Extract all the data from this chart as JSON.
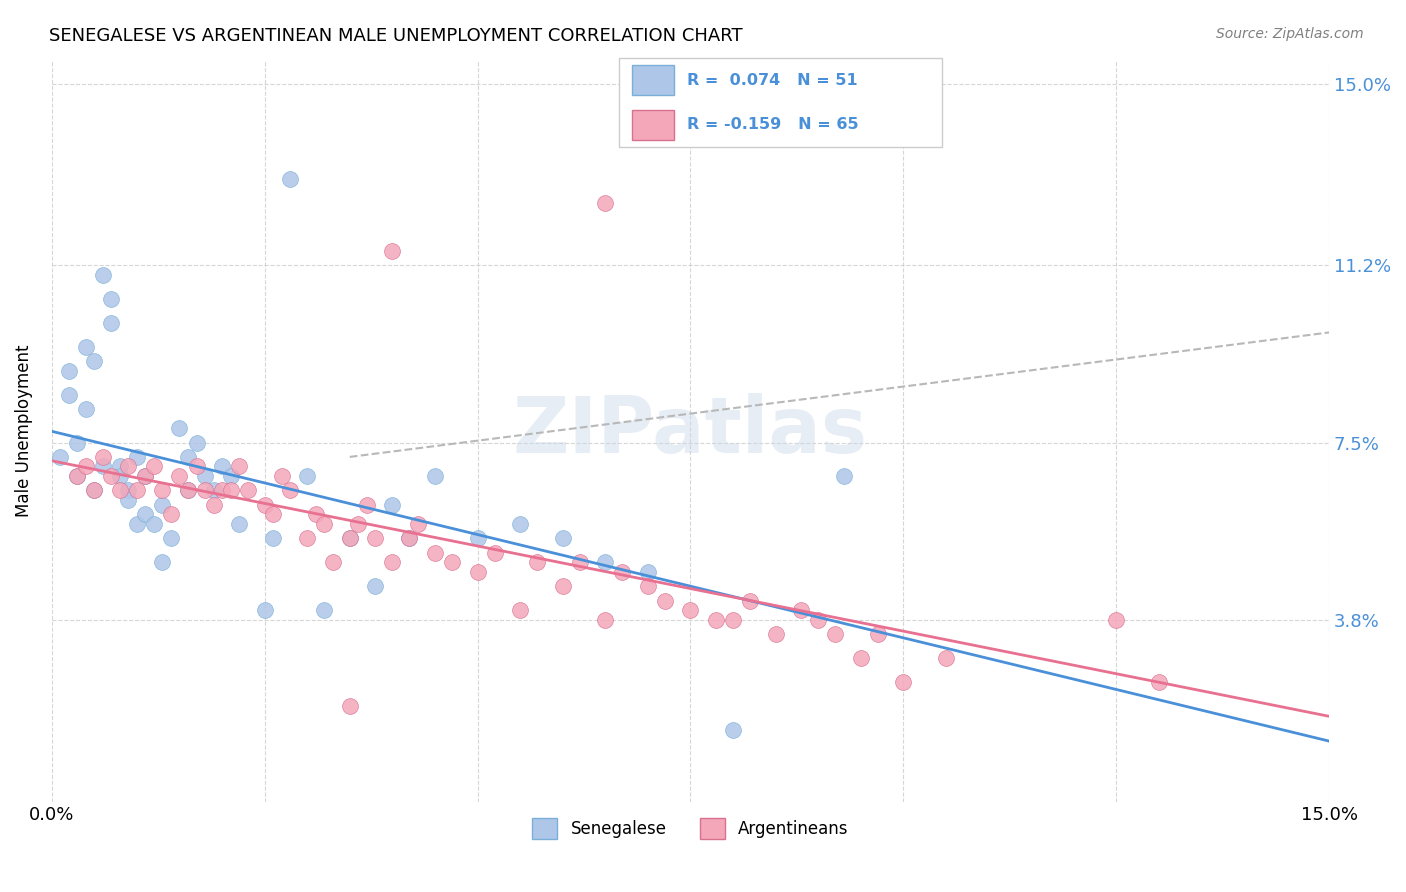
{
  "title": "SENEGALESE VS ARGENTINEAN MALE UNEMPLOYMENT CORRELATION CHART",
  "source": "Source: ZipAtlas.com",
  "ylabel": "Male Unemployment",
  "xlim": [
    0.0,
    0.15
  ],
  "ylim": [
    0.0,
    0.155
  ],
  "yticks": [
    0.038,
    0.075,
    0.112,
    0.15
  ],
  "ytick_labels": [
    "3.8%",
    "7.5%",
    "11.2%",
    "15.0%"
  ],
  "xticks": [
    0.0,
    0.025,
    0.05,
    0.075,
    0.1,
    0.125,
    0.15
  ],
  "xtick_labels": [
    "0.0%",
    "",
    "",
    "",
    "",
    "",
    "15.0%"
  ],
  "senegalese_color": "#aec6e8",
  "senegalese_edge": "#7ab0d8",
  "argentinean_color": "#f4a7b9",
  "argentinean_edge": "#d87090",
  "trend_blue": "#4a90d9",
  "trend_pink": "#e87090",
  "trend_dashed_color": "#b8b8b8",
  "senegalese_x": [
    0.001,
    0.002,
    0.002,
    0.003,
    0.003,
    0.004,
    0.004,
    0.005,
    0.005,
    0.006,
    0.006,
    0.007,
    0.007,
    0.008,
    0.008,
    0.009,
    0.009,
    0.01,
    0.01,
    0.011,
    0.011,
    0.012,
    0.013,
    0.013,
    0.014,
    0.015,
    0.016,
    0.016,
    0.017,
    0.018,
    0.019,
    0.02,
    0.021,
    0.022,
    0.025,
    0.026,
    0.028,
    0.03,
    0.032,
    0.035,
    0.038,
    0.04,
    0.042,
    0.045,
    0.05,
    0.055,
    0.06,
    0.065,
    0.07,
    0.08,
    0.093
  ],
  "senegalese_y": [
    0.072,
    0.09,
    0.085,
    0.068,
    0.075,
    0.082,
    0.095,
    0.092,
    0.065,
    0.07,
    0.11,
    0.105,
    0.1,
    0.07,
    0.068,
    0.065,
    0.063,
    0.058,
    0.072,
    0.068,
    0.06,
    0.058,
    0.062,
    0.05,
    0.055,
    0.078,
    0.065,
    0.072,
    0.075,
    0.068,
    0.065,
    0.07,
    0.068,
    0.058,
    0.04,
    0.055,
    0.13,
    0.068,
    0.04,
    0.055,
    0.045,
    0.062,
    0.055,
    0.068,
    0.055,
    0.058,
    0.055,
    0.05,
    0.048,
    0.015,
    0.068
  ],
  "argentinean_x": [
    0.003,
    0.004,
    0.005,
    0.006,
    0.007,
    0.008,
    0.009,
    0.01,
    0.011,
    0.012,
    0.013,
    0.014,
    0.015,
    0.016,
    0.017,
    0.018,
    0.019,
    0.02,
    0.021,
    0.022,
    0.023,
    0.025,
    0.026,
    0.027,
    0.028,
    0.03,
    0.031,
    0.032,
    0.033,
    0.035,
    0.036,
    0.037,
    0.038,
    0.04,
    0.042,
    0.043,
    0.045,
    0.047,
    0.05,
    0.052,
    0.055,
    0.057,
    0.06,
    0.062,
    0.065,
    0.067,
    0.07,
    0.072,
    0.075,
    0.078,
    0.08,
    0.082,
    0.085,
    0.088,
    0.09,
    0.092,
    0.095,
    0.097,
    0.1,
    0.105,
    0.065,
    0.04,
    0.035,
    0.125,
    0.13
  ],
  "argentinean_y": [
    0.068,
    0.07,
    0.065,
    0.072,
    0.068,
    0.065,
    0.07,
    0.065,
    0.068,
    0.07,
    0.065,
    0.06,
    0.068,
    0.065,
    0.07,
    0.065,
    0.062,
    0.065,
    0.065,
    0.07,
    0.065,
    0.062,
    0.06,
    0.068,
    0.065,
    0.055,
    0.06,
    0.058,
    0.05,
    0.055,
    0.058,
    0.062,
    0.055,
    0.05,
    0.055,
    0.058,
    0.052,
    0.05,
    0.048,
    0.052,
    0.04,
    0.05,
    0.045,
    0.05,
    0.038,
    0.048,
    0.045,
    0.042,
    0.04,
    0.038,
    0.038,
    0.042,
    0.035,
    0.04,
    0.038,
    0.035,
    0.03,
    0.035,
    0.025,
    0.03,
    0.125,
    0.115,
    0.02,
    0.038,
    0.025
  ],
  "dashed_line_x": [
    0.035,
    0.15
  ],
  "dashed_line_y": [
    0.072,
    0.098
  ],
  "legend_label1": "R =  0.074   N = 51",
  "legend_label2": "R = -0.159   N = 65"
}
